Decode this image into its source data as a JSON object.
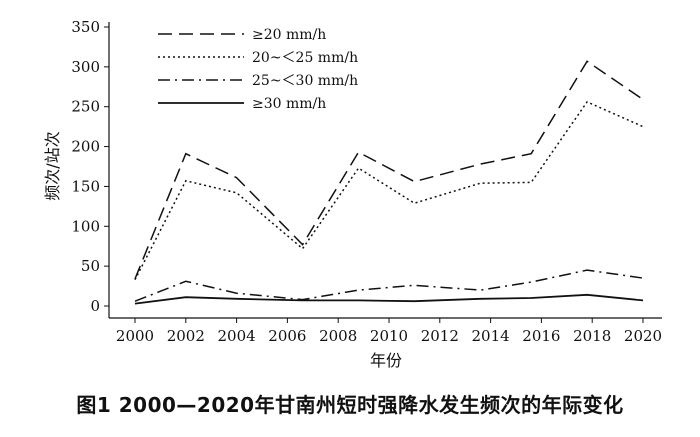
{
  "caption": "图1 2000—2020年甘南州短时强降水发生频次的年际变化",
  "chart_data": {
    "type": "line",
    "title": "",
    "xlabel": "年份",
    "ylabel": "频次/站次",
    "xlim": [
      2000,
      2020
    ],
    "ylim": [
      0,
      350
    ],
    "xticks": [
      2000,
      2002,
      2004,
      2006,
      2008,
      2010,
      2012,
      2014,
      2016,
      2018,
      2020
    ],
    "yticks": [
      0,
      50,
      100,
      150,
      200,
      250,
      300,
      350
    ],
    "grid": false,
    "legend_position": "top-left",
    "x": [
      2000,
      2002,
      2004,
      2006,
      2008,
      2010,
      2012,
      2014,
      2016,
      2018,
      2020
    ],
    "series": [
      {
        "name": "≥20 mm/h",
        "style": "dashed",
        "values": [
          34,
          191,
          161,
          77,
          193,
          156,
          178,
          191,
          307,
          259,
          259
        ],
        "xs": [
          2000,
          2002,
          2004,
          2006.6,
          2008.8,
          2011,
          2013.6,
          2015.6,
          2017.8,
          2020,
          2020
        ]
      },
      {
        "name": "20~＜25 mm/h",
        "style": "dotted",
        "values": [
          33,
          157,
          142,
          72,
          173,
          129,
          154,
          155,
          256,
          225,
          225
        ],
        "xs": [
          2000,
          2002,
          2004,
          2006.6,
          2008.8,
          2011,
          2013.6,
          2015.6,
          2017.8,
          2020,
          2020
        ]
      },
      {
        "name": "25~＜30 mm/h",
        "style": "dashdot",
        "values": [
          6,
          31,
          16,
          8,
          20,
          26,
          20,
          30,
          45,
          35,
          35
        ],
        "xs": [
          2000,
          2002,
          2004,
          2006.6,
          2008.8,
          2011,
          2013.6,
          2015.6,
          2017.8,
          2020,
          2020
        ]
      },
      {
        "name": "≥30 mm/h",
        "style": "solid",
        "values": [
          3,
          11,
          9,
          7,
          7,
          6,
          9,
          10,
          14,
          7,
          7
        ],
        "xs": [
          2000,
          2002,
          2004,
          2006.6,
          2008.8,
          2011,
          2013.6,
          2015.6,
          2017.8,
          2020,
          2020
        ]
      }
    ]
  }
}
